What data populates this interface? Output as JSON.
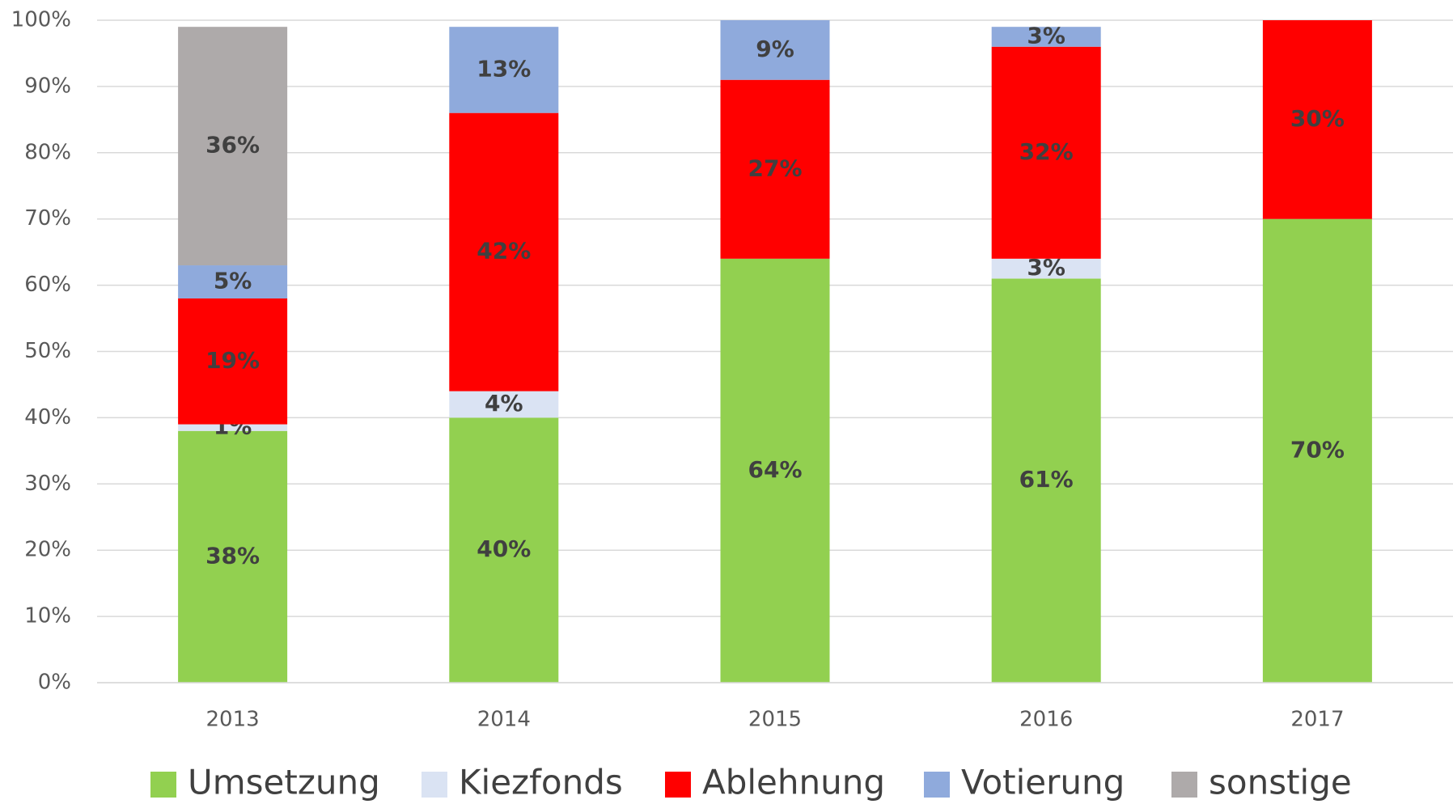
{
  "chart_data": {
    "type": "stacked_bar",
    "categories": [
      "2013",
      "2014",
      "2015",
      "2016",
      "2017"
    ],
    "series": [
      {
        "name": "Umsetzung",
        "color": "#92d050",
        "values": [
          38,
          40,
          64,
          61,
          70
        ],
        "value_labels": [
          "38%",
          "40%",
          "64%",
          "61%",
          "70%"
        ]
      },
      {
        "name": "Kiezfonds",
        "color": "#dae3f3",
        "values": [
          1,
          4,
          null,
          3,
          null
        ],
        "value_labels": [
          "1%",
          "4%",
          null,
          "3%",
          null
        ]
      },
      {
        "name": "Ablehnung",
        "color": "#ff0000",
        "values": [
          19,
          42,
          27,
          32,
          30
        ],
        "value_labels": [
          "19%",
          "42%",
          "27%",
          "32%",
          "30%"
        ]
      },
      {
        "name": "Votierung",
        "color": "#8faadc",
        "values": [
          5,
          13,
          9,
          3,
          null
        ],
        "value_labels": [
          "5%",
          "13%",
          "9%",
          "3%",
          null
        ]
      },
      {
        "name": "sonstige",
        "color": "#aeaaaa",
        "values": [
          36,
          null,
          null,
          null,
          null
        ],
        "value_labels": [
          "36%",
          null,
          null,
          null,
          null
        ]
      }
    ],
    "ylim": [
      0,
      100
    ],
    "yticks": [
      {
        "value": 0,
        "label": "0%"
      },
      {
        "value": 10,
        "label": "10%"
      },
      {
        "value": 20,
        "label": "20%"
      },
      {
        "value": 30,
        "label": "30%"
      },
      {
        "value": 40,
        "label": "40%"
      },
      {
        "value": 50,
        "label": "50%"
      },
      {
        "value": 60,
        "label": "60%"
      },
      {
        "value": 70,
        "label": "70%"
      },
      {
        "value": 80,
        "label": "80%"
      },
      {
        "value": 90,
        "label": "90%"
      },
      {
        "value": 100,
        "label": "100%"
      }
    ],
    "grid": true,
    "legend": "bottom"
  }
}
